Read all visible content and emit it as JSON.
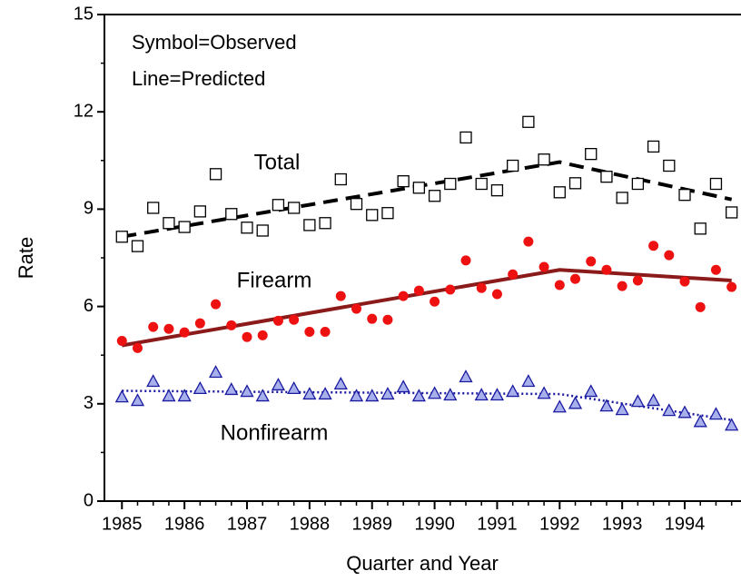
{
  "chart_data": {
    "type": "scatter-line",
    "ylabel": "Rate",
    "xlabel": "Quarter and Year",
    "annotations": [
      "Symbol=Observed",
      "Line=Predicted"
    ],
    "xlim": [
      1984.72,
      1994.9
    ],
    "xticks": [
      1985,
      1986,
      1987,
      1988,
      1989,
      1990,
      1991,
      1992,
      1993,
      1994
    ],
    "ylim": [
      0,
      15
    ],
    "yticks": [
      0,
      3,
      6,
      9,
      12,
      15
    ],
    "x": [
      1985,
      1985.25,
      1985.5,
      1985.75,
      1986,
      1986.25,
      1986.5,
      1986.75,
      1987,
      1987.25,
      1987.5,
      1987.75,
      1988,
      1988.25,
      1988.5,
      1988.75,
      1989,
      1989.25,
      1989.5,
      1989.75,
      1990,
      1990.25,
      1990.5,
      1990.75,
      1991,
      1991.25,
      1991.5,
      1991.75,
      1992,
      1992.25,
      1992.5,
      1992.75,
      1993,
      1993.25,
      1993.5,
      1993.75,
      1994,
      1994.25,
      1994.5,
      1994.75
    ],
    "series": [
      {
        "name": "Total",
        "marker": "square",
        "color": "#000000",
        "line_style": "dashed",
        "values": [
          8.15,
          7.86,
          9.04,
          8.57,
          8.45,
          8.93,
          10.08,
          8.85,
          8.43,
          8.34,
          9.13,
          9.04,
          8.51,
          8.57,
          9.92,
          9.16,
          8.82,
          8.88,
          9.86,
          9.66,
          9.41,
          9.78,
          11.21,
          9.78,
          9.58,
          10.34,
          11.69,
          10.53,
          9.52,
          9.8,
          10.7,
          10.0,
          9.35,
          9.78,
          10.93,
          10.34,
          9.44,
          8.4,
          9.78,
          8.9
        ],
        "predicted_x": [
          1985,
          1992,
          1994.75
        ],
        "predicted": [
          8.15,
          10.45,
          9.3
        ]
      },
      {
        "name": "Firearm",
        "marker": "circle",
        "color": "#ee1111",
        "line_color": "#8b1a1a",
        "line_style": "solid",
        "values": [
          4.94,
          4.72,
          5.37,
          5.31,
          5.2,
          5.48,
          6.07,
          5.42,
          5.06,
          5.11,
          5.56,
          5.59,
          5.22,
          5.22,
          6.32,
          5.93,
          5.62,
          5.59,
          6.32,
          6.49,
          6.15,
          6.52,
          7.42,
          6.57,
          6.38,
          6.99,
          8.0,
          7.22,
          6.66,
          6.85,
          7.39,
          7.13,
          6.63,
          6.8,
          7.87,
          7.58,
          6.77,
          5.98,
          7.13,
          6.6
        ],
        "predicted_x": [
          1985,
          1992,
          1994.75
        ],
        "predicted": [
          4.8,
          7.13,
          6.8
        ]
      },
      {
        "name": "Nonfirearm",
        "marker": "triangle",
        "color": "#a8b0ec",
        "line_color": "#1a1aa0",
        "line_style": "dotted",
        "values": [
          3.2,
          3.09,
          3.68,
          3.23,
          3.23,
          3.46,
          3.96,
          3.43,
          3.37,
          3.23,
          3.57,
          3.46,
          3.29,
          3.29,
          3.6,
          3.23,
          3.23,
          3.29,
          3.51,
          3.23,
          3.31,
          3.26,
          3.82,
          3.26,
          3.26,
          3.37,
          3.68,
          3.31,
          2.89,
          3.0,
          3.37,
          2.92,
          2.81,
          3.06,
          3.09,
          2.78,
          2.72,
          2.44,
          2.67,
          2.33
        ],
        "predicted_x": [
          1985,
          1992,
          1994.75
        ],
        "predicted": [
          3.4,
          3.3,
          2.5
        ]
      }
    ]
  }
}
